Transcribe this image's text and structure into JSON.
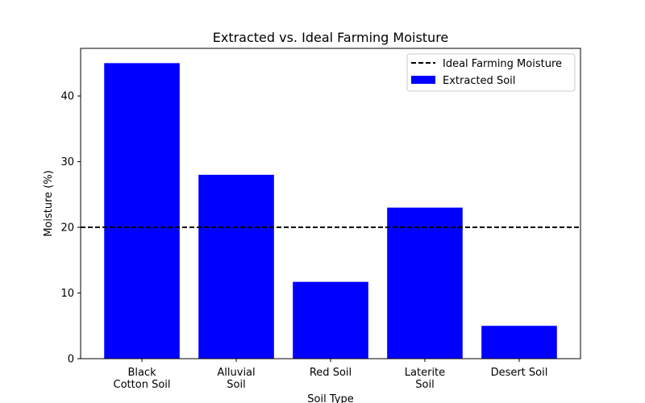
{
  "chart_data": {
    "type": "bar",
    "title": "Extracted vs. Ideal Farming Moisture",
    "xlabel": "Soil Type",
    "ylabel": "Moisture (%)",
    "categories": [
      [
        "Black",
        "Cotton Soil"
      ],
      [
        "Alluvial",
        "Soil"
      ],
      [
        "Red Soil"
      ],
      [
        "Laterite",
        "Soil"
      ],
      [
        "Desert Soil"
      ]
    ],
    "series": [
      {
        "name": "Extracted Soil",
        "values": [
          45,
          28,
          11.7,
          23,
          5
        ],
        "color": "#0000ff"
      }
    ],
    "reference_line": {
      "name": "Ideal Farming Moisture",
      "value": 20,
      "style": "dashed",
      "color": "#000000"
    },
    "ylim": [
      0,
      47.25
    ],
    "yticks": [
      0,
      10,
      20,
      30,
      40
    ],
    "grid": false,
    "legend_position": "top-right"
  }
}
